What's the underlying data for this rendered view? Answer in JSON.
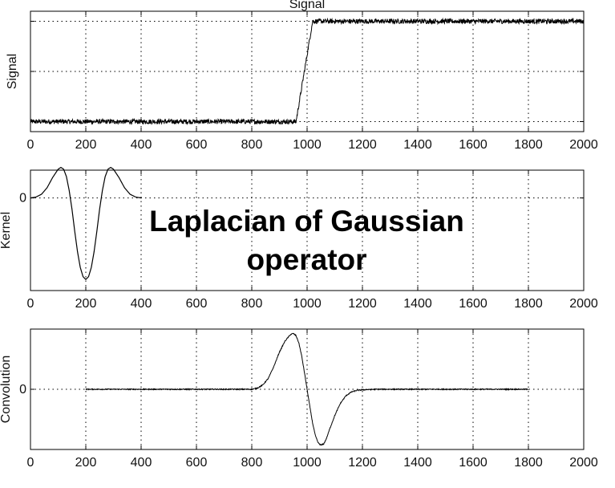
{
  "overlay": {
    "line1": "Laplacian of Gaussian",
    "line2": "operator"
  },
  "chart_data": [
    {
      "type": "line",
      "id": "signal",
      "title": "Signal",
      "xlabel": "",
      "ylabel": "Signal",
      "xlim": [
        0,
        2000
      ],
      "xticks": [
        0,
        200,
        400,
        600,
        800,
        1000,
        1200,
        1400,
        1600,
        1800,
        2000
      ],
      "ylim": [
        -0.1,
        1.1
      ],
      "yticks": [
        0,
        0.5,
        1
      ],
      "ytick_labels": [
        "",
        "",
        ""
      ],
      "grid": true,
      "noise": 0.02,
      "x": [
        0,
        960,
        1020,
        2000
      ],
      "y": [
        0,
        0,
        1,
        1
      ]
    },
    {
      "type": "line",
      "id": "kernel",
      "xlabel": "",
      "ylabel": "Kernel",
      "xlim": [
        0,
        2000
      ],
      "xticks": [
        0,
        200,
        400,
        600,
        800,
        1000,
        1200,
        1400,
        1600,
        1800,
        2000
      ],
      "ylim": [
        -1.0,
        0.3
      ],
      "yticks": [
        0
      ],
      "ytick_labels": [
        "0"
      ],
      "grid": true,
      "noise": 0,
      "x": [
        0,
        20,
        40,
        60,
        80,
        100,
        110,
        120,
        130,
        140,
        150,
        160,
        170,
        180,
        190,
        200,
        210,
        220,
        230,
        240,
        250,
        260,
        270,
        280,
        290,
        300,
        320,
        340,
        360,
        380,
        400
      ],
      "y": [
        0.0,
        0.01,
        0.04,
        0.11,
        0.22,
        0.31,
        0.33,
        0.31,
        0.23,
        0.08,
        -0.12,
        -0.36,
        -0.58,
        -0.75,
        -0.85,
        -0.88,
        -0.85,
        -0.75,
        -0.58,
        -0.36,
        -0.12,
        0.08,
        0.23,
        0.31,
        0.33,
        0.31,
        0.22,
        0.11,
        0.04,
        0.01,
        0.0
      ]
    },
    {
      "type": "line",
      "id": "convolution",
      "xlabel": "",
      "ylabel": "Convolution",
      "xlim": [
        0,
        2000
      ],
      "xticks": [
        0,
        200,
        400,
        600,
        800,
        1000,
        1200,
        1400,
        1600,
        1800,
        2000
      ],
      "ylim": [
        -1.1,
        1.1
      ],
      "yticks": [
        0
      ],
      "ytick_labels": [
        "0"
      ],
      "grid": true,
      "noise": 0.004,
      "x": [
        200,
        800,
        820,
        840,
        860,
        880,
        900,
        920,
        940,
        950,
        960,
        970,
        980,
        990,
        1000,
        1010,
        1020,
        1030,
        1040,
        1050,
        1060,
        1070,
        1080,
        1100,
        1120,
        1140,
        1160,
        1180,
        1200,
        1250,
        1800
      ],
      "y": [
        0.0,
        0.0,
        0.02,
        0.08,
        0.2,
        0.42,
        0.68,
        0.88,
        1.0,
        1.02,
        0.98,
        0.85,
        0.62,
        0.32,
        0.0,
        -0.32,
        -0.62,
        -0.85,
        -0.98,
        -1.02,
        -1.0,
        -0.9,
        -0.75,
        -0.48,
        -0.26,
        -0.12,
        -0.05,
        -0.02,
        -0.01,
        0.0,
        0.0
      ]
    }
  ]
}
